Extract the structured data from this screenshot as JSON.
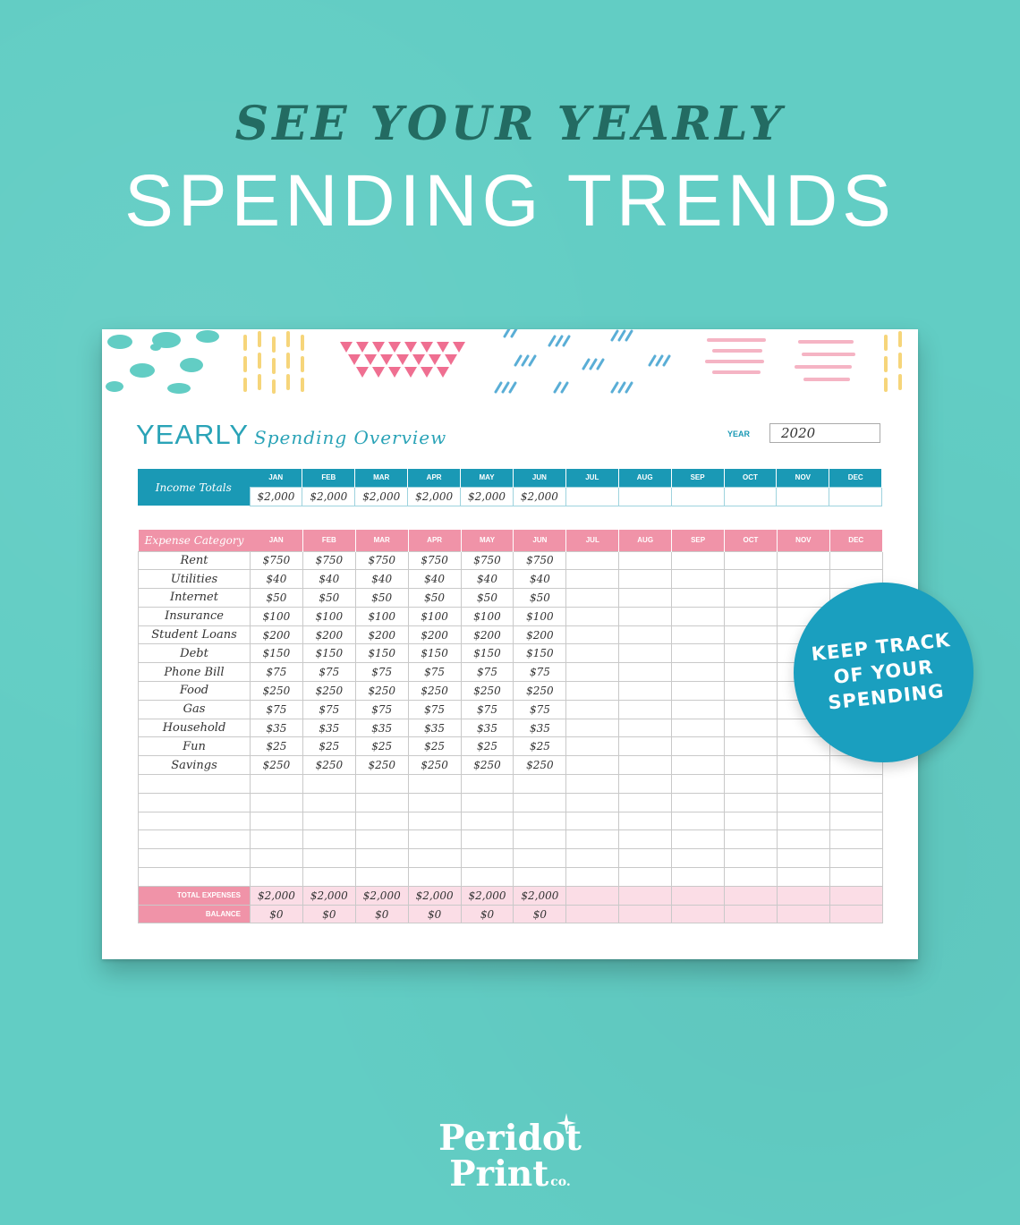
{
  "headline": {
    "top": "SEE YOUR YEARLY",
    "main": "SPENDING TRENDS"
  },
  "sheet": {
    "title_main": "YEARLY",
    "title_sub": "Spending Overview",
    "year_label": "YEAR",
    "year_value": "2020"
  },
  "months": [
    "JAN",
    "FEB",
    "MAR",
    "APR",
    "MAY",
    "JUN",
    "JUL",
    "AUG",
    "SEP",
    "OCT",
    "NOV",
    "DEC"
  ],
  "income": {
    "label": "Income Totals",
    "values": [
      "$2,000",
      "$2,000",
      "$2,000",
      "$2,000",
      "$2,000",
      "$2,000",
      "",
      "",
      "",
      "",
      "",
      ""
    ]
  },
  "expense": {
    "header_label": "Expense Category",
    "rows": [
      {
        "cat": "Rent",
        "v": [
          "$750",
          "$750",
          "$750",
          "$750",
          "$750",
          "$750",
          "",
          "",
          "",
          "",
          "",
          ""
        ]
      },
      {
        "cat": "Utilities",
        "v": [
          "$40",
          "$40",
          "$40",
          "$40",
          "$40",
          "$40",
          "",
          "",
          "",
          "",
          "",
          ""
        ]
      },
      {
        "cat": "Internet",
        "v": [
          "$50",
          "$50",
          "$50",
          "$50",
          "$50",
          "$50",
          "",
          "",
          "",
          "",
          "",
          ""
        ]
      },
      {
        "cat": "Insurance",
        "v": [
          "$100",
          "$100",
          "$100",
          "$100",
          "$100",
          "$100",
          "",
          "",
          "",
          "",
          "",
          ""
        ]
      },
      {
        "cat": "Student Loans",
        "v": [
          "$200",
          "$200",
          "$200",
          "$200",
          "$200",
          "$200",
          "",
          "",
          "",
          "",
          "",
          ""
        ]
      },
      {
        "cat": "Debt",
        "v": [
          "$150",
          "$150",
          "$150",
          "$150",
          "$150",
          "$150",
          "",
          "",
          "",
          "",
          "",
          ""
        ]
      },
      {
        "cat": "Phone Bill",
        "v": [
          "$75",
          "$75",
          "$75",
          "$75",
          "$75",
          "$75",
          "",
          "",
          "",
          "",
          "",
          ""
        ]
      },
      {
        "cat": "Food",
        "v": [
          "$250",
          "$250",
          "$250",
          "$250",
          "$250",
          "$250",
          "",
          "",
          "",
          "",
          "",
          ""
        ]
      },
      {
        "cat": "Gas",
        "v": [
          "$75",
          "$75",
          "$75",
          "$75",
          "$75",
          "$75",
          "",
          "",
          "",
          "",
          "",
          ""
        ]
      },
      {
        "cat": "Household",
        "v": [
          "$35",
          "$35",
          "$35",
          "$35",
          "$35",
          "$35",
          "",
          "",
          "",
          "",
          "",
          ""
        ]
      },
      {
        "cat": "Fun",
        "v": [
          "$25",
          "$25",
          "$25",
          "$25",
          "$25",
          "$25",
          "",
          "",
          "",
          "",
          "",
          ""
        ]
      },
      {
        "cat": "Savings",
        "v": [
          "$250",
          "$250",
          "$250",
          "$250",
          "$250",
          "$250",
          "",
          "",
          "",
          "",
          "",
          ""
        ]
      },
      {
        "cat": "",
        "v": [
          "",
          "",
          "",
          "",
          "",
          "",
          "",
          "",
          "",
          "",
          "",
          ""
        ]
      },
      {
        "cat": "",
        "v": [
          "",
          "",
          "",
          "",
          "",
          "",
          "",
          "",
          "",
          "",
          "",
          ""
        ]
      },
      {
        "cat": "",
        "v": [
          "",
          "",
          "",
          "",
          "",
          "",
          "",
          "",
          "",
          "",
          "",
          ""
        ]
      },
      {
        "cat": "",
        "v": [
          "",
          "",
          "",
          "",
          "",
          "",
          "",
          "",
          "",
          "",
          "",
          ""
        ]
      },
      {
        "cat": "",
        "v": [
          "",
          "",
          "",
          "",
          "",
          "",
          "",
          "",
          "",
          "",
          "",
          ""
        ]
      },
      {
        "cat": "",
        "v": [
          "",
          "",
          "",
          "",
          "",
          "",
          "",
          "",
          "",
          "",
          "",
          ""
        ]
      }
    ],
    "total_label": "TOTAL EXPENSES",
    "total_values": [
      "$2,000",
      "$2,000",
      "$2,000",
      "$2,000",
      "$2,000",
      "$2,000",
      "",
      "",
      "",
      "",
      "",
      ""
    ],
    "balance_label": "BALANCE",
    "balance_values": [
      "$0",
      "$0",
      "$0",
      "$0",
      "$0",
      "$0",
      "",
      "",
      "",
      "",
      "",
      ""
    ]
  },
  "badge": {
    "line1": "KEEP TRACK",
    "line2": "OF YOUR",
    "line3": "SPENDING"
  },
  "logo": {
    "line1": "Peridot",
    "line2": "Print",
    "suffix": "co."
  },
  "colors": {
    "background": "#62cdc4",
    "accent_blue": "#1a99b5",
    "accent_pink": "#f093a8",
    "headline_dark": "#236b62"
  }
}
